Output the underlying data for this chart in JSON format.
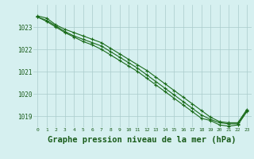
{
  "x": [
    0,
    1,
    2,
    3,
    4,
    5,
    6,
    7,
    8,
    9,
    10,
    11,
    12,
    13,
    14,
    15,
    16,
    17,
    18,
    19,
    20,
    21,
    22,
    23
  ],
  "line1": [
    1023.5,
    1023.4,
    1023.1,
    1022.9,
    1022.75,
    1022.6,
    1022.45,
    1022.3,
    1022.05,
    1021.8,
    1021.55,
    1021.3,
    1021.05,
    1020.75,
    1020.45,
    1020.15,
    1019.85,
    1019.55,
    1019.25,
    1018.95,
    1018.75,
    1018.7,
    1018.7,
    1019.3
  ],
  "line2": [
    1023.45,
    1023.3,
    1023.05,
    1022.8,
    1022.6,
    1022.45,
    1022.3,
    1022.15,
    1021.9,
    1021.65,
    1021.4,
    1021.15,
    1020.85,
    1020.55,
    1020.25,
    1019.95,
    1019.65,
    1019.35,
    1019.05,
    1018.85,
    1018.7,
    1018.65,
    1018.65,
    1019.25
  ],
  "line3": [
    1023.45,
    1023.25,
    1023.0,
    1022.75,
    1022.55,
    1022.35,
    1022.2,
    1022.0,
    1021.75,
    1021.5,
    1021.25,
    1021.0,
    1020.7,
    1020.4,
    1020.1,
    1019.8,
    1019.5,
    1019.2,
    1018.9,
    1018.8,
    1018.6,
    1018.55,
    1018.6,
    1019.2
  ],
  "line_color": "#1a6b1a",
  "marker": "+",
  "marker_size": 3,
  "marker_lw": 0.8,
  "line_width": 0.8,
  "bg_color": "#d6f0f0",
  "grid_color": "#aacccc",
  "title": "Graphe pression niveau de la mer (hPa)",
  "title_fontsize": 7.5,
  "tick_color": "#1a5c1a",
  "ylim": [
    1018.5,
    1024.0
  ],
  "yticks": [
    1019,
    1020,
    1021,
    1022,
    1023
  ],
  "xtick_labels": [
    "0",
    "1",
    "2",
    "3",
    "4",
    "5",
    "6",
    "7",
    "8",
    "9",
    "10",
    "11",
    "12",
    "13",
    "14",
    "15",
    "16",
    "17",
    "18",
    "19",
    "20",
    "21",
    "22",
    "23"
  ],
  "xticks": [
    0,
    1,
    2,
    3,
    4,
    5,
    6,
    7,
    8,
    9,
    10,
    11,
    12,
    13,
    14,
    15,
    16,
    17,
    18,
    19,
    20,
    21,
    22,
    23
  ],
  "xlim": [
    -0.5,
    23.5
  ]
}
